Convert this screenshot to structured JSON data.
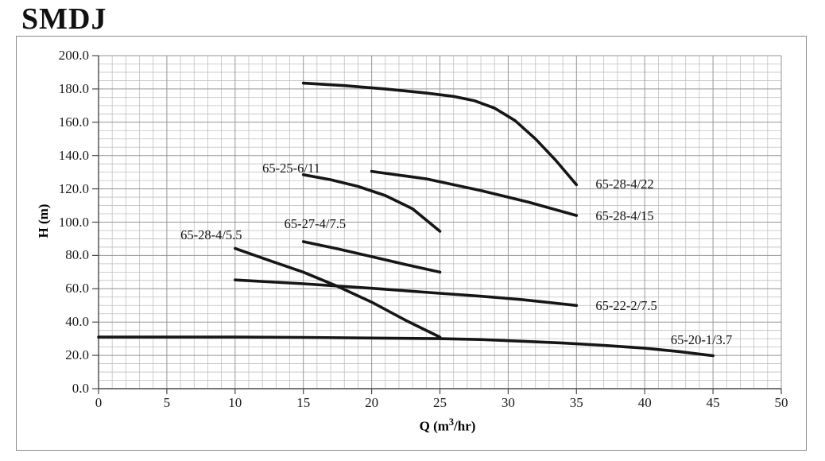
{
  "title": "SMDJ",
  "colors": {
    "curve": "#161616",
    "grid_minor": "#c0c0c0",
    "grid_major": "#969696",
    "axis": "#4a4a4a",
    "frame": "#8a8a8a",
    "text": "#111111"
  },
  "chart_data": {
    "type": "line",
    "title": "SMDJ",
    "xlabel": "Q (m3/hr)",
    "xlabel_parts": {
      "pre": "Q (m",
      "sup": "3",
      "post": "/hr)"
    },
    "ylabel": "H (m)",
    "xlim": [
      0,
      50
    ],
    "ylim": [
      0,
      200
    ],
    "x_major_step": 5,
    "x_minor_step": 1,
    "y_major_step": 20,
    "y_minor_step": 5,
    "grid": true,
    "legend_position": "inline-labels",
    "x_ticks": [
      {
        "v": 0,
        "label": "0"
      },
      {
        "v": 5,
        "label": "5"
      },
      {
        "v": 10,
        "label": "10"
      },
      {
        "v": 15,
        "label": "15"
      },
      {
        "v": 20,
        "label": "20"
      },
      {
        "v": 25,
        "label": "25"
      },
      {
        "v": 30,
        "label": "30"
      },
      {
        "v": 35,
        "label": "35"
      },
      {
        "v": 40,
        "label": "40"
      },
      {
        "v": 45,
        "label": "45"
      },
      {
        "v": 50,
        "label": "50"
      }
    ],
    "y_ticks": [
      {
        "v": 0,
        "label": "0.0"
      },
      {
        "v": 20,
        "label": "20.0"
      },
      {
        "v": 40,
        "label": "40.0"
      },
      {
        "v": 60,
        "label": "60.0"
      },
      {
        "v": 80,
        "label": "80.0"
      },
      {
        "v": 100,
        "label": "100.0"
      },
      {
        "v": 120,
        "label": "120.0"
      },
      {
        "v": 140,
        "label": "140.0"
      },
      {
        "v": 160,
        "label": "160.0"
      },
      {
        "v": 180,
        "label": "180.0"
      },
      {
        "v": 200,
        "label": "200.0"
      }
    ],
    "series": [
      {
        "name": "65-28-4/22",
        "points": [
          [
            15,
            183.5
          ],
          [
            18,
            182
          ],
          [
            21,
            180
          ],
          [
            24,
            177.5
          ],
          [
            26,
            175.5
          ],
          [
            27.5,
            173
          ],
          [
            29,
            168.5
          ],
          [
            30.5,
            161
          ],
          [
            32,
            150
          ],
          [
            33.5,
            137
          ],
          [
            35,
            122.5
          ]
        ],
        "label_pos": [
          36.4,
          122.5
        ]
      },
      {
        "name": "65-25-6/11",
        "points": [
          [
            15,
            128.5
          ],
          [
            17,
            125.5
          ],
          [
            19,
            121.5
          ],
          [
            21,
            116
          ],
          [
            23,
            108
          ],
          [
            25,
            94.5
          ]
        ],
        "label_pos": [
          12.0,
          132.3
        ]
      },
      {
        "name": "65-28-4/15",
        "points": [
          [
            20,
            130.5
          ],
          [
            24,
            126
          ],
          [
            28,
            119
          ],
          [
            31.5,
            112
          ],
          [
            35,
            104
          ]
        ],
        "label_pos": [
          36.4,
          103.5
        ]
      },
      {
        "name": "65-27-4/7.5",
        "points": [
          [
            15,
            88.3
          ],
          [
            17.5,
            84
          ],
          [
            20,
            79.3
          ],
          [
            22.5,
            74.5
          ],
          [
            25,
            70
          ]
        ],
        "label_pos": [
          13.6,
          98.8
        ]
      },
      {
        "name": "65-28-4/5.5",
        "points": [
          [
            10,
            84.2
          ],
          [
            12.5,
            77
          ],
          [
            15,
            70
          ],
          [
            17.5,
            61.5
          ],
          [
            20,
            52
          ],
          [
            22.5,
            41
          ],
          [
            25,
            31
          ]
        ],
        "label_pos": [
          6.0,
          92.1
        ]
      },
      {
        "name": "65-22-2/7.5",
        "points": [
          [
            10,
            65.3
          ],
          [
            15,
            63
          ],
          [
            20,
            60.3
          ],
          [
            25,
            57.3
          ],
          [
            28,
            55.5
          ],
          [
            31,
            53.5
          ],
          [
            35,
            50
          ]
        ],
        "label_pos": [
          36.4,
          49.6
        ]
      },
      {
        "name": "65-20-1/3.7",
        "points": [
          [
            0,
            31
          ],
          [
            5,
            31
          ],
          [
            10,
            31
          ],
          [
            15,
            30.8
          ],
          [
            20,
            30.4
          ],
          [
            25,
            30
          ],
          [
            28,
            29.5
          ],
          [
            31,
            28.5
          ],
          [
            34,
            27.4
          ],
          [
            37,
            26
          ],
          [
            40,
            24.3
          ],
          [
            42.5,
            22.3
          ],
          [
            45,
            19.8
          ]
        ],
        "label_pos": [
          41.9,
          29.3
        ]
      }
    ]
  }
}
